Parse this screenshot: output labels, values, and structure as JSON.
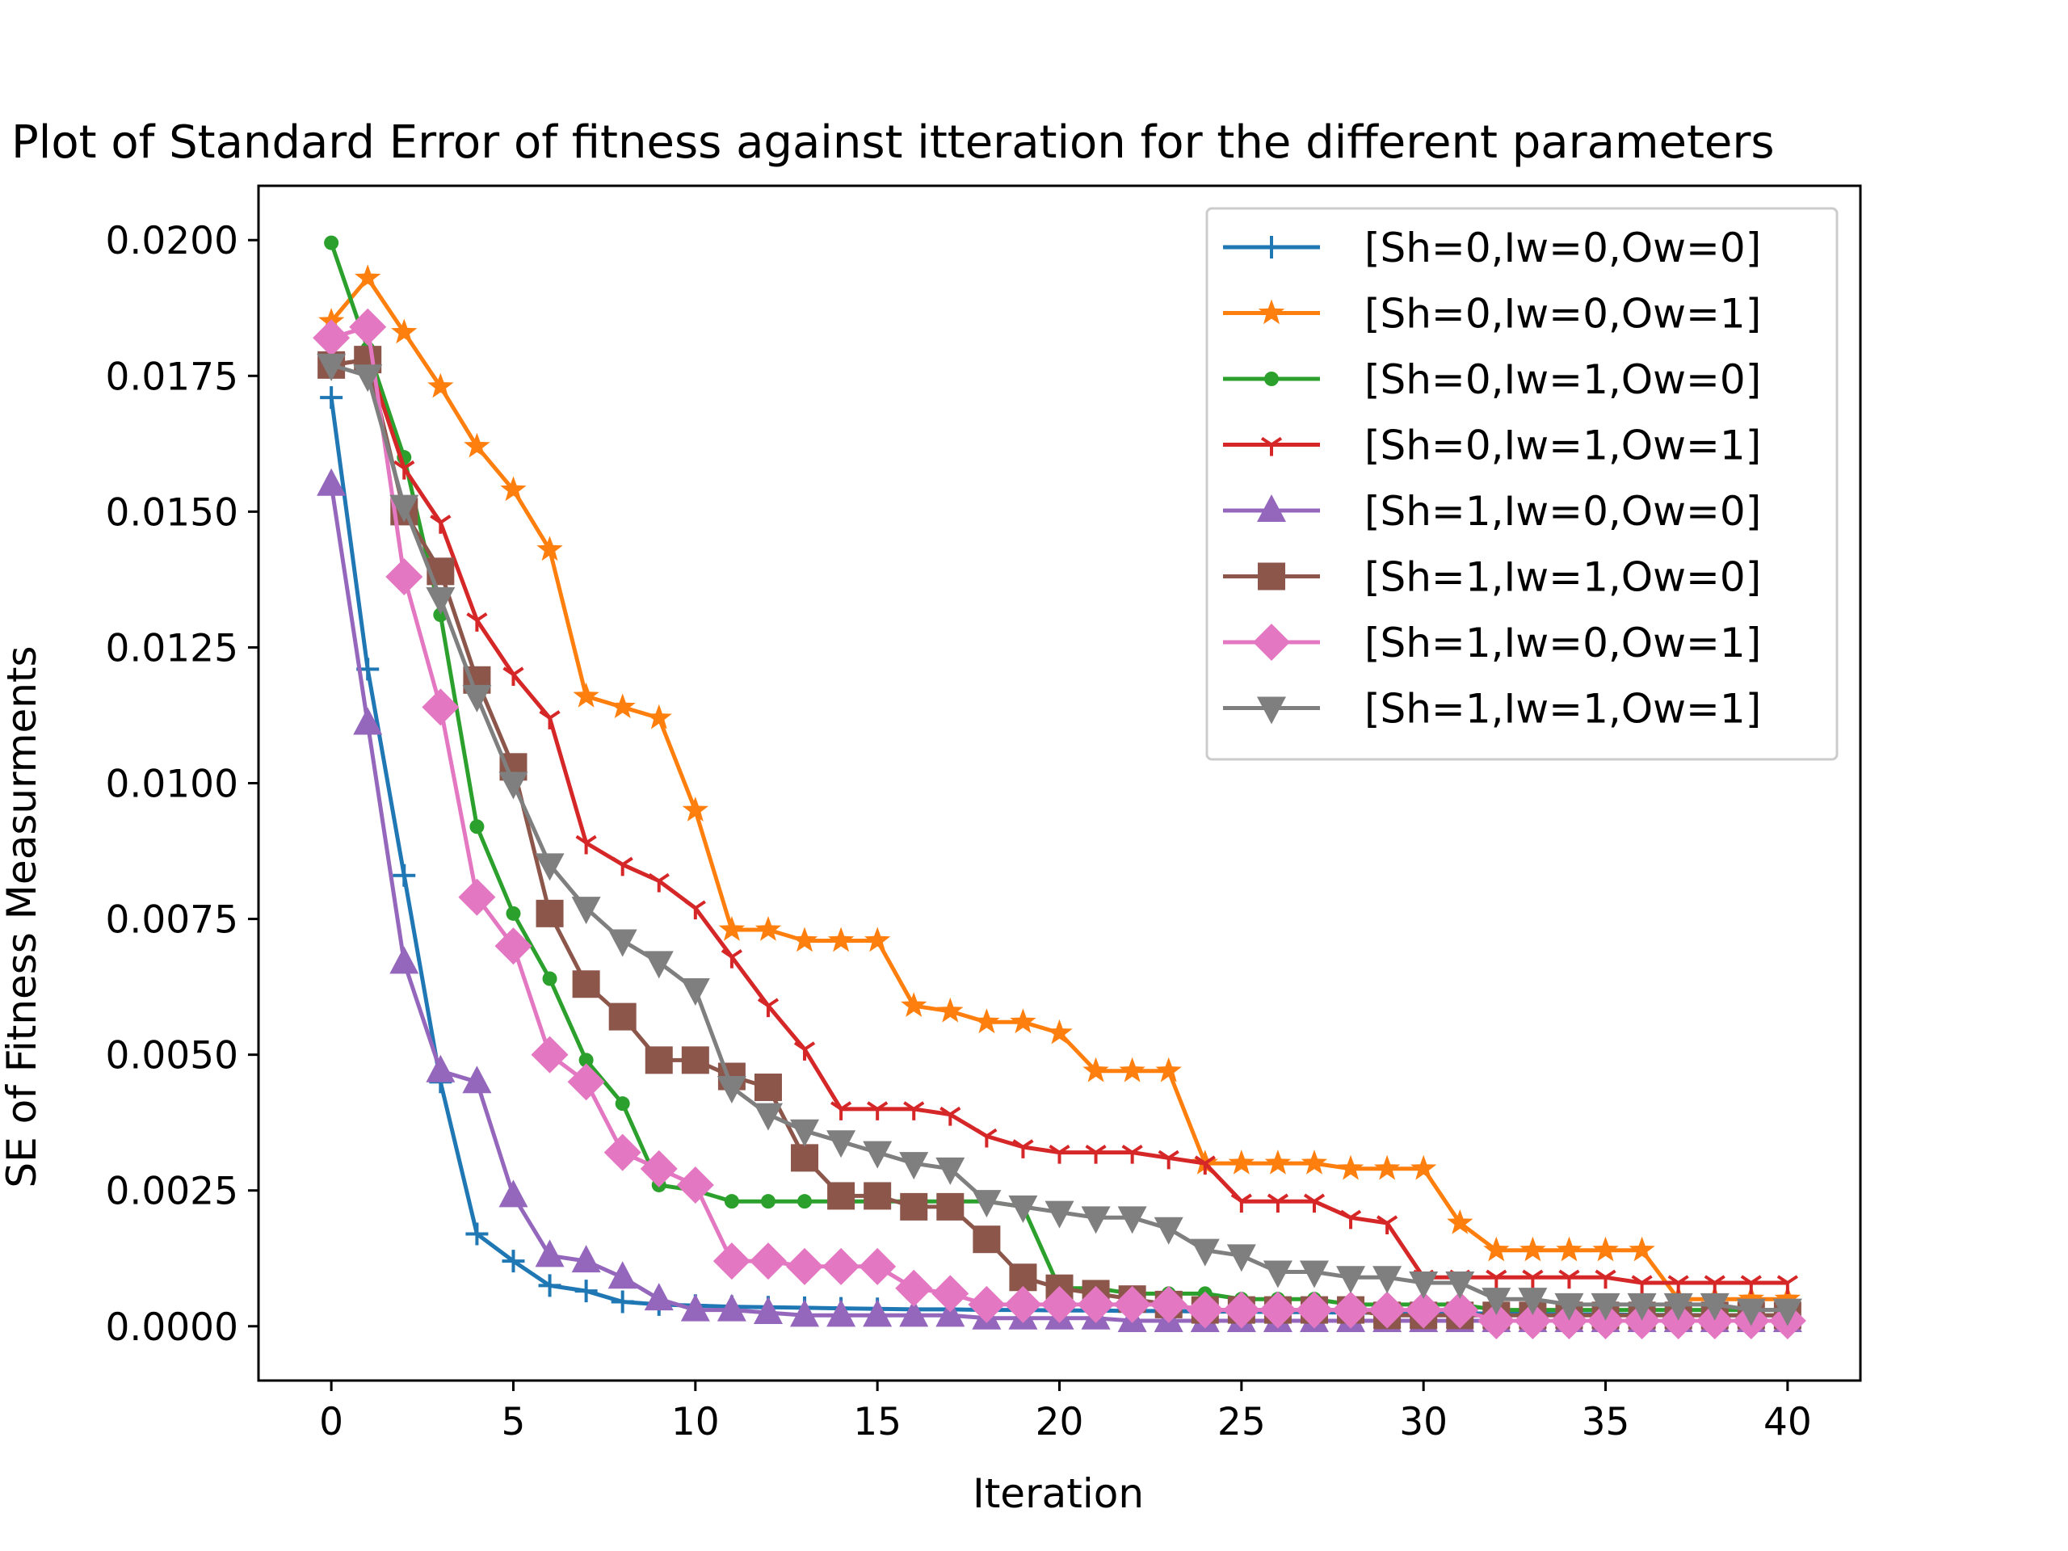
{
  "chart_data": {
    "type": "line",
    "title": "Plot of Standard Error of fitness against itteration for the different parameters",
    "xlabel": "Iteration",
    "ylabel": "SE of Fitness Measurments",
    "xlim": [
      -2,
      42
    ],
    "ylim": [
      -0.001,
      0.021
    ],
    "xticks": [
      0,
      5,
      10,
      15,
      20,
      25,
      30,
      35,
      40
    ],
    "xtick_labels": [
      "0",
      "5",
      "10",
      "15",
      "20",
      "25",
      "30",
      "35",
      "40"
    ],
    "yticks": [
      0,
      0.0025,
      0.005,
      0.0075,
      0.01,
      0.0125,
      0.015,
      0.0175,
      0.02
    ],
    "ytick_labels": [
      "0.0000",
      "0.0025",
      "0.0050",
      "0.0075",
      "0.0100",
      "0.0125",
      "0.0150",
      "0.0175",
      "0.0200"
    ],
    "grid": false,
    "legend_position": "upper right",
    "x": [
      0,
      1,
      2,
      3,
      4,
      5,
      6,
      7,
      8,
      9,
      10,
      11,
      12,
      13,
      14,
      15,
      16,
      17,
      18,
      19,
      20,
      21,
      22,
      23,
      24,
      25,
      26,
      27,
      28,
      29,
      30,
      31,
      32,
      33,
      34,
      35,
      36,
      37,
      38,
      39,
      40
    ],
    "series": [
      {
        "name": "[Sh=0,Iw=0,Ow=0]",
        "color": "#1f77b4",
        "marker": "plus",
        "values": [
          0.0171,
          0.0121,
          0.0083,
          0.0045,
          0.0017,
          0.0012,
          0.00075,
          0.00065,
          0.00045,
          0.0004,
          0.00038,
          0.00036,
          0.00035,
          0.00034,
          0.00033,
          0.00032,
          0.00031,
          0.00031,
          0.0003,
          0.0003,
          0.00029,
          0.00029,
          0.00028,
          0.00028,
          0.00027,
          0.00027,
          0.00026,
          0.00026,
          0.00025,
          0.00025,
          0.00024,
          0.00024,
          0.00023,
          0.00023,
          0.00022,
          0.00022,
          0.00021,
          0.00021,
          0.0002,
          0.0002,
          0.0002
        ]
      },
      {
        "name": "[Sh=0,Iw=0,Ow=1]",
        "color": "#ff7f0e",
        "marker": "star",
        "values": [
          0.0185,
          0.0193,
          0.0183,
          0.0173,
          0.0162,
          0.0154,
          0.0143,
          0.0116,
          0.0114,
          0.0112,
          0.0095,
          0.0073,
          0.0073,
          0.0071,
          0.0071,
          0.0071,
          0.0059,
          0.0058,
          0.0056,
          0.0056,
          0.0054,
          0.0047,
          0.0047,
          0.0047,
          0.003,
          0.003,
          0.003,
          0.003,
          0.0029,
          0.0029,
          0.0029,
          0.0019,
          0.0014,
          0.0014,
          0.0014,
          0.0014,
          0.0014,
          0.0005,
          0.0005,
          0.0005,
          0.0005
        ]
      },
      {
        "name": "[Sh=0,Iw=1,Ow=0]",
        "color": "#2ca02c",
        "marker": "dot",
        "values": [
          0.01995,
          0.018,
          0.016,
          0.0131,
          0.0092,
          0.0076,
          0.0064,
          0.0049,
          0.0041,
          0.0026,
          0.0025,
          0.0023,
          0.0023,
          0.0023,
          0.0023,
          0.0023,
          0.0023,
          0.0023,
          0.0023,
          0.0022,
          0.0007,
          0.0007,
          0.0006,
          0.0006,
          0.0006,
          0.0005,
          0.0005,
          0.0005,
          0.0004,
          0.0004,
          0.0004,
          0.0004,
          0.0003,
          0.0003,
          0.0003,
          0.0003,
          0.0003,
          0.0003,
          0.0003,
          0.0003,
          0.0003
        ]
      },
      {
        "name": "[Sh=0,Iw=1,Ow=1]",
        "color": "#d62728",
        "marker": "tri",
        "values": [
          0.0177,
          0.0178,
          0.0158,
          0.0148,
          0.013,
          0.012,
          0.0112,
          0.0089,
          0.0085,
          0.0082,
          0.0077,
          0.0068,
          0.0059,
          0.0051,
          0.004,
          0.004,
          0.004,
          0.0039,
          0.0035,
          0.0033,
          0.0032,
          0.0032,
          0.0032,
          0.0031,
          0.003,
          0.0023,
          0.0023,
          0.0023,
          0.002,
          0.0019,
          0.0009,
          0.0009,
          0.0009,
          0.0009,
          0.0009,
          0.0009,
          0.0008,
          0.0008,
          0.0008,
          0.0008,
          0.0008
        ]
      },
      {
        "name": "[Sh=1,Iw=0,Ow=0]",
        "color": "#9467bd",
        "marker": "triangle-up",
        "values": [
          0.0155,
          0.0111,
          0.0067,
          0.0047,
          0.0045,
          0.0024,
          0.0013,
          0.0012,
          0.0009,
          0.0005,
          0.0003,
          0.0003,
          0.00025,
          0.0002,
          0.0002,
          0.0002,
          0.0002,
          0.0002,
          0.00015,
          0.00015,
          0.00015,
          0.00015,
          0.0001,
          0.0001,
          0.0001,
          0.0001,
          0.0001,
          0.0001,
          0.0001,
          0.0001,
          0.0001,
          0.0001,
          0.0001,
          0.0001,
          0.0001,
          0.0001,
          0.0001,
          0.0001,
          0.0001,
          0.0001,
          0.0001
        ]
      },
      {
        "name": "[Sh=1,Iw=1,Ow=0]",
        "color": "#8c564b",
        "marker": "square",
        "values": [
          0.0177,
          0.0178,
          0.015,
          0.0139,
          0.0119,
          0.0103,
          0.0076,
          0.0063,
          0.0057,
          0.0049,
          0.0049,
          0.0046,
          0.0044,
          0.0031,
          0.0024,
          0.0024,
          0.0022,
          0.0022,
          0.0016,
          0.0009,
          0.0007,
          0.0006,
          0.0005,
          0.0004,
          0.0003,
          0.0003,
          0.0003,
          0.0003,
          0.0003,
          0.0002,
          0.0002,
          0.0002,
          0.0002,
          0.0002,
          0.0002,
          0.0002,
          0.0002,
          0.0002,
          0.0002,
          0.0002,
          0.0002
        ]
      },
      {
        "name": "[Sh=1,Iw=0,Ow=1]",
        "color": "#e377c2",
        "marker": "diamond",
        "values": [
          0.0182,
          0.0184,
          0.0138,
          0.0114,
          0.0079,
          0.007,
          0.005,
          0.0045,
          0.0032,
          0.0029,
          0.0026,
          0.0012,
          0.0012,
          0.0011,
          0.0011,
          0.0011,
          0.0007,
          0.0006,
          0.0004,
          0.0004,
          0.0004,
          0.0004,
          0.0004,
          0.0004,
          0.0003,
          0.0003,
          0.0003,
          0.0003,
          0.0003,
          0.0003,
          0.0003,
          0.0003,
          0.0001,
          0.0001,
          0.0001,
          0.0001,
          0.0001,
          0.0001,
          0.0001,
          0.0001,
          0.0001
        ]
      },
      {
        "name": "[Sh=1,Iw=1,Ow=1]",
        "color": "#7f7f7f",
        "marker": "triangle-down",
        "values": [
          0.0177,
          0.0175,
          0.0151,
          0.0134,
          0.0116,
          0.01,
          0.0085,
          0.0077,
          0.0071,
          0.0067,
          0.0062,
          0.0044,
          0.0039,
          0.0036,
          0.0034,
          0.0032,
          0.003,
          0.0029,
          0.0023,
          0.0022,
          0.0021,
          0.002,
          0.002,
          0.0018,
          0.0014,
          0.0013,
          0.001,
          0.001,
          0.0009,
          0.0009,
          0.0008,
          0.0008,
          0.0005,
          0.0005,
          0.0004,
          0.0004,
          0.0004,
          0.0004,
          0.0004,
          0.0003,
          0.0003
        ]
      }
    ]
  }
}
